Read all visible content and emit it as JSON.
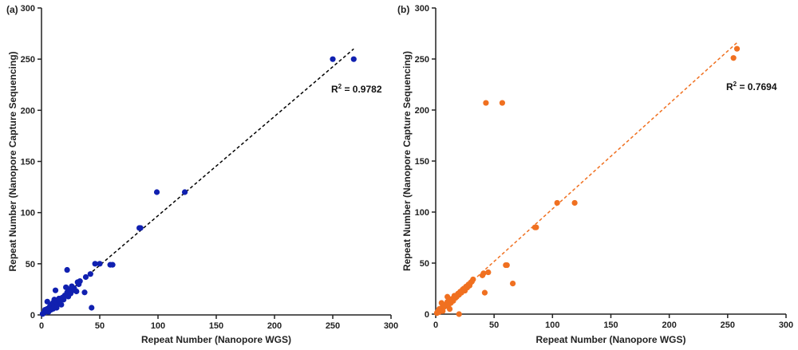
{
  "chart_data": [
    {
      "type": "scatter",
      "panel_label": "(a)",
      "xlabel": "Repeat Number (Nanopore WGS)",
      "ylabel": "Repeat Number (Nanopore Capture Sequencing)",
      "xlim": [
        0,
        300
      ],
      "ylim": [
        0,
        300
      ],
      "xticks": [
        0,
        50,
        100,
        150,
        200,
        250,
        300
      ],
      "yticks": [
        0,
        50,
        100,
        150,
        200,
        250,
        300
      ],
      "grid": false,
      "color": "#1020b0",
      "r2_label": "= 0.9782",
      "fit_line": {
        "x": [
          0,
          268
        ],
        "y": [
          0,
          260
        ],
        "color": "#000000"
      },
      "points": [
        [
          1,
          1
        ],
        [
          2,
          2
        ],
        [
          3,
          3
        ],
        [
          3,
          5
        ],
        [
          4,
          4
        ],
        [
          5,
          6
        ],
        [
          5,
          13
        ],
        [
          6,
          3
        ],
        [
          7,
          8
        ],
        [
          8,
          10
        ],
        [
          8,
          5
        ],
        [
          9,
          7
        ],
        [
          10,
          12
        ],
        [
          10,
          6
        ],
        [
          11,
          15
        ],
        [
          11,
          9
        ],
        [
          12,
          24
        ],
        [
          12,
          13
        ],
        [
          13,
          7
        ],
        [
          14,
          11
        ],
        [
          15,
          16
        ],
        [
          15,
          12
        ],
        [
          16,
          14
        ],
        [
          17,
          10
        ],
        [
          18,
          17
        ],
        [
          19,
          15
        ],
        [
          20,
          19
        ],
        [
          21,
          27
        ],
        [
          22,
          44
        ],
        [
          22,
          22
        ],
        [
          23,
          18
        ],
        [
          24,
          25
        ],
        [
          25,
          21
        ],
        [
          26,
          28
        ],
        [
          27,
          24
        ],
        [
          28,
          26
        ],
        [
          30,
          23
        ],
        [
          31,
          32
        ],
        [
          32,
          30
        ],
        [
          33,
          33
        ],
        [
          37,
          22
        ],
        [
          38,
          37
        ],
        [
          42,
          40
        ],
        [
          43,
          7
        ],
        [
          46,
          50
        ],
        [
          50,
          50
        ],
        [
          59,
          49
        ],
        [
          61,
          49
        ],
        [
          84,
          85
        ],
        [
          85,
          85
        ],
        [
          99,
          120
        ],
        [
          123,
          120
        ],
        [
          250,
          250
        ],
        [
          268,
          250
        ]
      ]
    },
    {
      "type": "scatter",
      "panel_label": "(b)",
      "xlabel": "Repeat Number (Nanopore WGS)",
      "ylabel": "Repeat Number (Nanopore Capture Sequencing)",
      "xlim": [
        0,
        300
      ],
      "ylim": [
        0,
        300
      ],
      "xticks": [
        0,
        50,
        100,
        150,
        200,
        250,
        300
      ],
      "yticks": [
        0,
        50,
        100,
        150,
        200,
        250,
        300
      ],
      "grid": false,
      "color": "#f07020",
      "r2_label": "= 0.7694",
      "fit_line": {
        "x": [
          0,
          258
        ],
        "y": [
          0,
          266
        ],
        "color": "#f07020"
      },
      "points": [
        [
          1,
          1
        ],
        [
          2,
          3
        ],
        [
          3,
          2
        ],
        [
          3,
          5
        ],
        [
          4,
          4
        ],
        [
          5,
          6
        ],
        [
          5,
          11
        ],
        [
          6,
          3
        ],
        [
          7,
          7
        ],
        [
          8,
          9
        ],
        [
          9,
          8
        ],
        [
          10,
          12
        ],
        [
          10,
          17
        ],
        [
          11,
          9
        ],
        [
          12,
          14
        ],
        [
          12,
          5
        ],
        [
          13,
          11
        ],
        [
          14,
          15
        ],
        [
          15,
          13
        ],
        [
          16,
          18
        ],
        [
          17,
          16
        ],
        [
          18,
          17
        ],
        [
          19,
          20
        ],
        [
          20,
          0
        ],
        [
          20,
          19
        ],
        [
          21,
          22
        ],
        [
          22,
          21
        ],
        [
          23,
          24
        ],
        [
          24,
          25
        ],
        [
          25,
          23
        ],
        [
          26,
          27
        ],
        [
          27,
          26
        ],
        [
          28,
          29
        ],
        [
          29,
          28
        ],
        [
          30,
          31
        ],
        [
          31,
          32
        ],
        [
          32,
          34
        ],
        [
          40,
          38
        ],
        [
          41,
          40
        ],
        [
          42,
          21
        ],
        [
          43,
          207
        ],
        [
          45,
          41
        ],
        [
          57,
          207
        ],
        [
          60,
          48
        ],
        [
          61,
          48
        ],
        [
          66,
          30
        ],
        [
          85,
          85
        ],
        [
          86,
          85
        ],
        [
          104,
          109
        ],
        [
          119,
          109
        ],
        [
          255,
          251
        ],
        [
          258,
          260
        ]
      ]
    }
  ]
}
